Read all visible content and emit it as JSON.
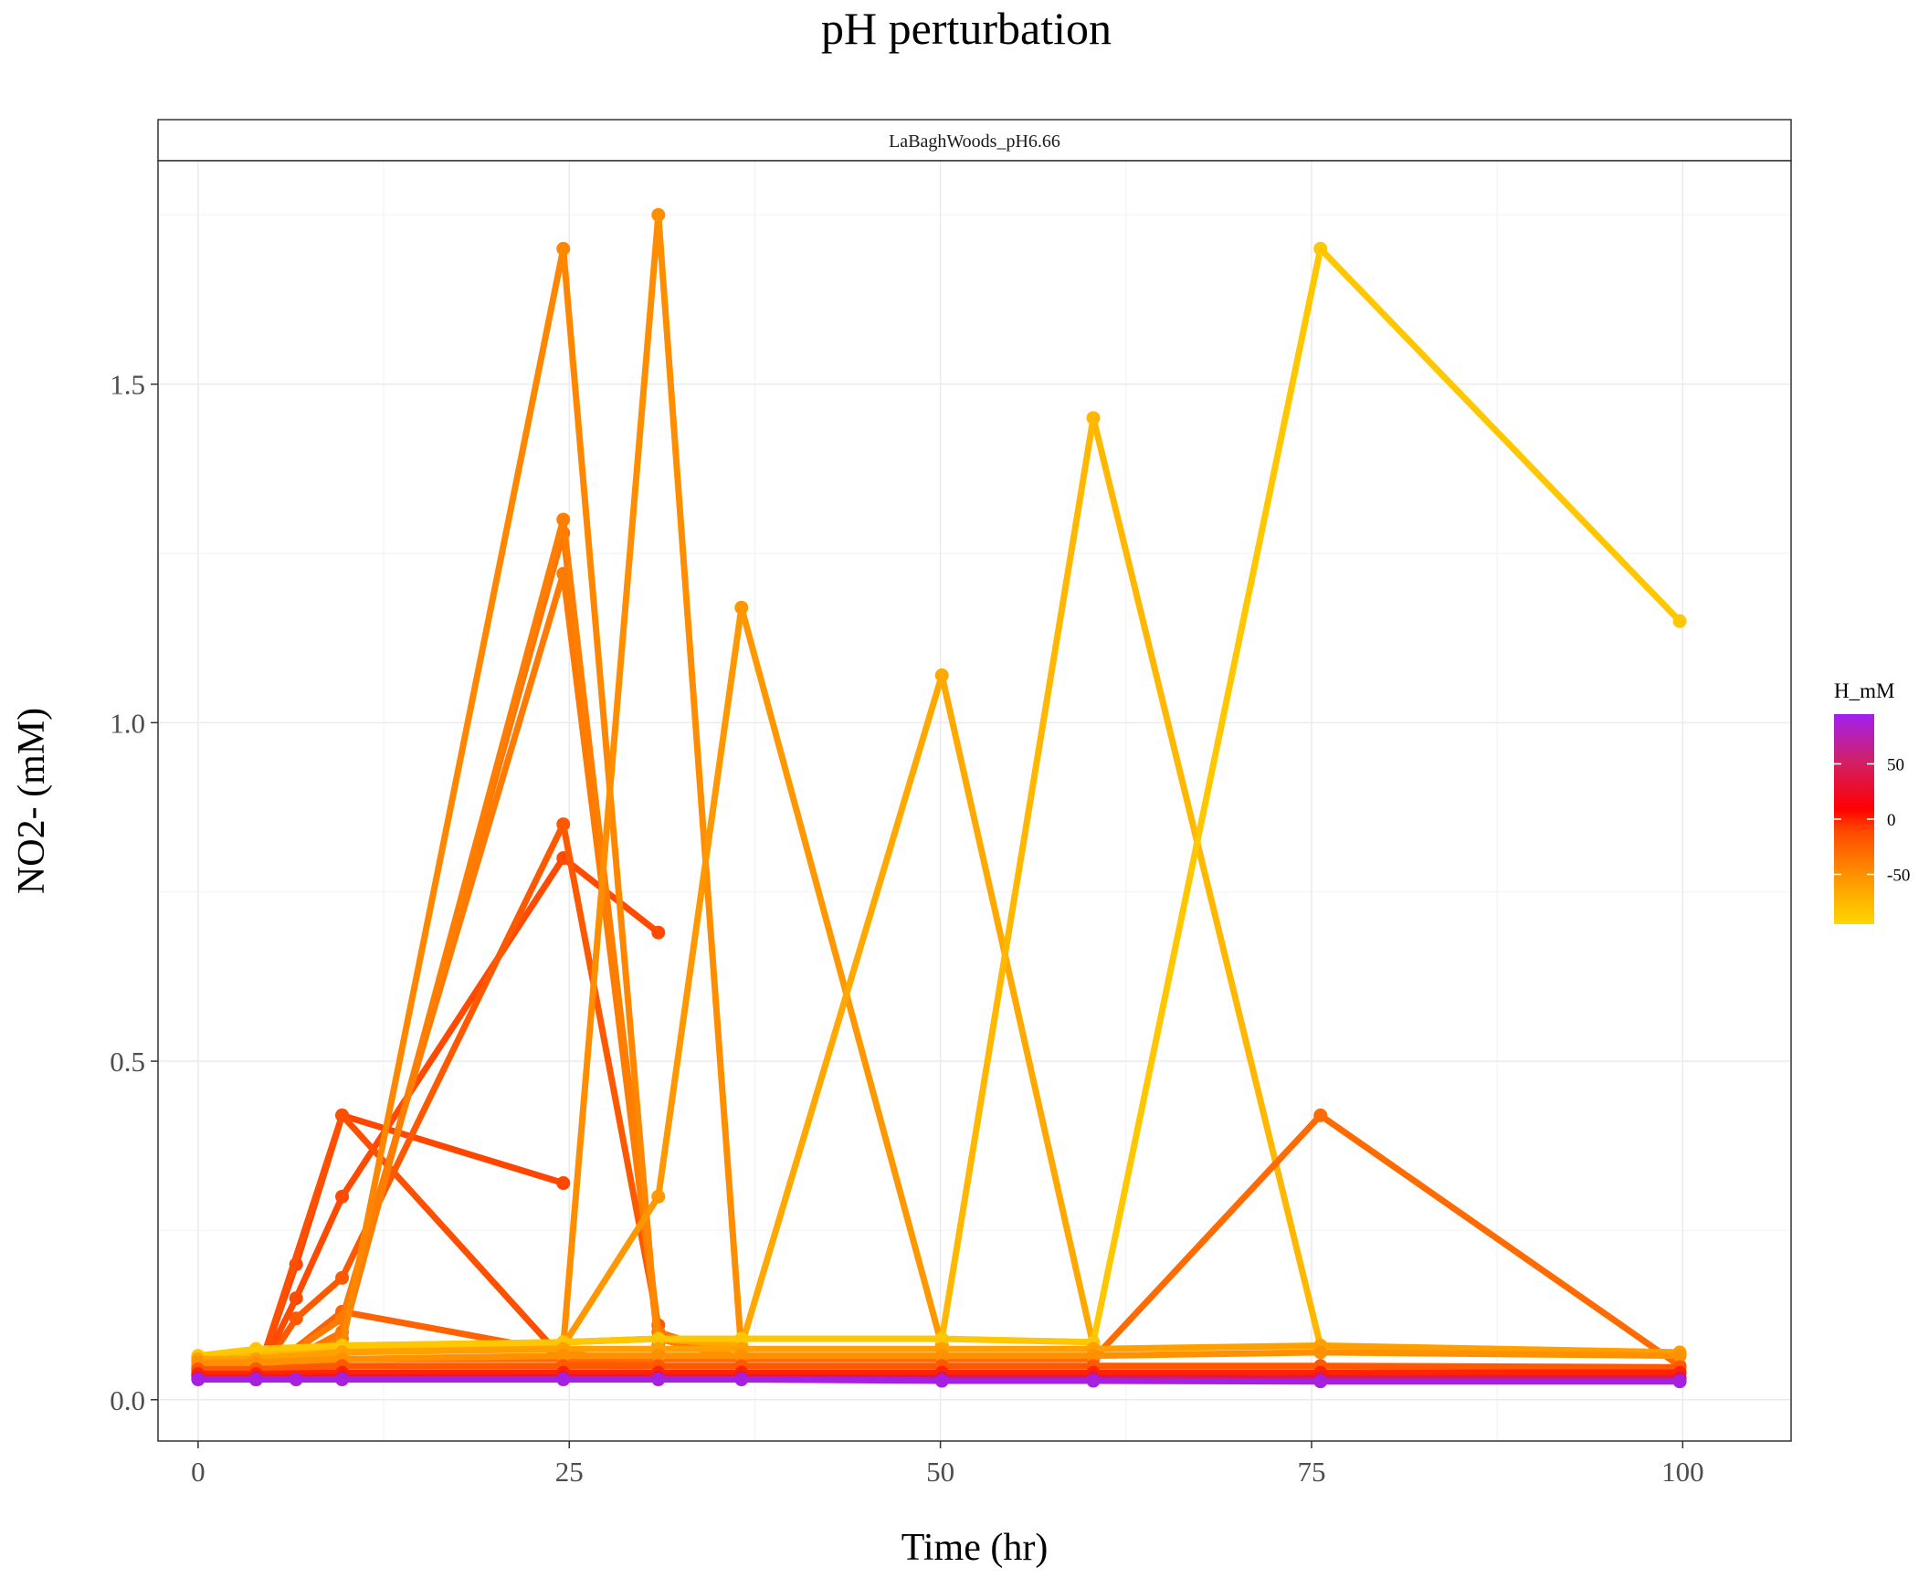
{
  "chart_data": {
    "type": "line",
    "title": "pH perturbation",
    "facet_label": "LaBaghWoods_pH6.66",
    "xlabel": "Time (hr)",
    "ylabel": "NO2- (mM)",
    "xlim": [
      -2.7,
      107.3
    ],
    "ylim": [
      -0.061,
      1.83
    ],
    "x_ticks": [
      0,
      25,
      50,
      75,
      100
    ],
    "x_tick_labels": [
      "0",
      "25",
      "50",
      "75",
      "100"
    ],
    "y_ticks": [
      0.0,
      0.5,
      1.0,
      1.5
    ],
    "y_tick_labels": [
      "0.0",
      "0.5",
      "1.0",
      "1.5"
    ],
    "grid": true,
    "legend": {
      "title": "H_mM",
      "position": "right",
      "ticks": [
        50,
        0,
        -50
      ],
      "tick_labels": [
        "50",
        "0",
        "-50"
      ],
      "range": [
        -95,
        95
      ],
      "colors": [
        "#FFD700",
        "#FF8C00",
        "#FF4500",
        "#FF0000",
        "#D0206A",
        "#A020F0"
      ]
    },
    "series": [
      {
        "h": -10,
        "x": [
          0,
          3.9,
          6.6,
          9.7,
          24.6
        ],
        "y": [
          0.035,
          0.03,
          0.2,
          0.42,
          0.32
        ]
      },
      {
        "h": -12,
        "x": [
          0,
          3.9,
          6.6,
          9.7,
          24.6,
          31
        ],
        "y": [
          0.035,
          0.03,
          0.15,
          0.3,
          0.8,
          0.69
        ]
      },
      {
        "h": -15,
        "x": [
          0,
          3.9,
          9.7,
          24.6,
          31
        ],
        "y": [
          0.036,
          0.03,
          0.42,
          0.06,
          0.05
        ]
      },
      {
        "h": -20,
        "x": [
          0,
          3.9,
          6.6,
          9.7,
          24.6,
          31
        ],
        "y": [
          0.037,
          0.03,
          0.12,
          0.18,
          0.85,
          0.11
        ]
      },
      {
        "h": -25,
        "x": [
          0,
          3.9,
          9.7,
          24.6,
          31
        ],
        "y": [
          0.038,
          0.03,
          0.13,
          0.07,
          0.05
        ]
      },
      {
        "h": -35,
        "x": [
          0,
          3.9,
          9.7,
          24.6,
          31,
          36.6
        ],
        "y": [
          0.04,
          0.032,
          0.1,
          1.28,
          0.1,
          0.06
        ]
      },
      {
        "h": -38,
        "x": [
          0,
          3.9,
          9.7,
          24.6,
          31,
          36.6
        ],
        "y": [
          0.042,
          0.035,
          0.12,
          1.22,
          0.09,
          0.06
        ]
      },
      {
        "h": -40,
        "x": [
          0,
          3.9,
          9.7,
          24.6,
          31
        ],
        "y": [
          0.045,
          0.035,
          0.09,
          1.3,
          0.08
        ]
      },
      {
        "h": -45,
        "x": [
          0,
          3.9,
          9.7,
          24.6,
          31
        ],
        "y": [
          0.048,
          0.04,
          0.08,
          1.7,
          0.07
        ]
      },
      {
        "h": -48,
        "x": [
          0,
          3.9,
          9.7,
          24.6,
          31,
          36.6
        ],
        "y": [
          0.05,
          0.045,
          0.08,
          0.08,
          1.75,
          0.07
        ]
      },
      {
        "h": -55,
        "x": [
          0,
          3.9,
          9.7,
          24.6,
          31,
          36.6,
          50.1
        ],
        "y": [
          0.055,
          0.05,
          0.07,
          0.08,
          0.3,
          1.17,
          0.08
        ]
      },
      {
        "h": -65,
        "x": [
          0,
          3.9,
          9.7,
          24.6,
          31,
          36.6,
          50.1,
          60.3
        ],
        "y": [
          0.06,
          0.06,
          0.075,
          0.085,
          0.09,
          0.08,
          1.07,
          0.08
        ]
      },
      {
        "h": -75,
        "x": [
          0,
          3.9,
          9.7,
          24.6,
          31,
          36.6,
          50.1,
          60.3,
          75.6
        ],
        "y": [
          0.062,
          0.07,
          0.08,
          0.085,
          0.09,
          0.09,
          0.09,
          1.45,
          0.08
        ]
      },
      {
        "h": -85,
        "x": [
          0,
          3.9,
          9.7,
          24.6,
          31,
          36.6,
          50.1,
          60.3,
          75.6,
          99.8
        ],
        "y": [
          0.065,
          0.075,
          0.08,
          0.085,
          0.09,
          0.09,
          0.09,
          0.085,
          1.7,
          1.15
        ]
      },
      {
        "h": -30,
        "x": [
          0,
          3.9,
          9.7,
          24.6,
          31,
          36.6,
          50.1,
          60.3,
          75.6,
          99.8
        ],
        "y": [
          0.045,
          0.04,
          0.06,
          0.06,
          0.06,
          0.06,
          0.06,
          0.06,
          0.42,
          0.05
        ]
      },
      {
        "h": -60,
        "x": [
          0,
          3.9,
          9.7,
          24.6,
          31,
          36.6,
          50.1,
          60.3,
          75.6,
          99.8
        ],
        "y": [
          0.06,
          0.06,
          0.07,
          0.075,
          0.075,
          0.075,
          0.075,
          0.075,
          0.08,
          0.07
        ]
      },
      {
        "h": -50,
        "x": [
          0,
          3.9,
          9.7,
          24.6,
          31,
          36.6,
          50.1,
          60.3,
          75.6,
          99.8
        ],
        "y": [
          0.055,
          0.055,
          0.06,
          0.065,
          0.065,
          0.065,
          0.065,
          0.065,
          0.07,
          0.065
        ]
      },
      {
        "h": -20,
        "x": [
          0,
          3.9,
          9.7,
          24.6,
          31,
          36.6,
          50.1,
          60.3,
          75.6,
          99.8
        ],
        "y": [
          0.045,
          0.045,
          0.05,
          0.05,
          0.05,
          0.05,
          0.05,
          0.05,
          0.05,
          0.048
        ]
      },
      {
        "h": 0,
        "x": [
          0,
          3.9,
          9.7,
          24.6,
          31,
          36.6,
          50.1,
          60.3,
          75.6,
          99.8
        ],
        "y": [
          0.038,
          0.038,
          0.04,
          0.04,
          0.04,
          0.04,
          0.04,
          0.04,
          0.04,
          0.04
        ]
      },
      {
        "h": 40,
        "x": [
          0,
          3.9,
          9.7,
          24.6,
          31,
          36.6,
          50.1,
          60.3,
          75.6,
          99.8
        ],
        "y": [
          0.032,
          0.032,
          0.033,
          0.033,
          0.033,
          0.033,
          0.032,
          0.032,
          0.032,
          0.032
        ]
      },
      {
        "h": 90,
        "x": [
          0,
          3.9,
          6.6,
          9.7,
          24.6,
          31,
          36.6,
          50.1,
          60.3,
          75.6,
          99.8
        ],
        "y": [
          0.03,
          0.03,
          0.03,
          0.03,
          0.03,
          0.03,
          0.03,
          0.028,
          0.028,
          0.027,
          0.027
        ]
      }
    ]
  }
}
